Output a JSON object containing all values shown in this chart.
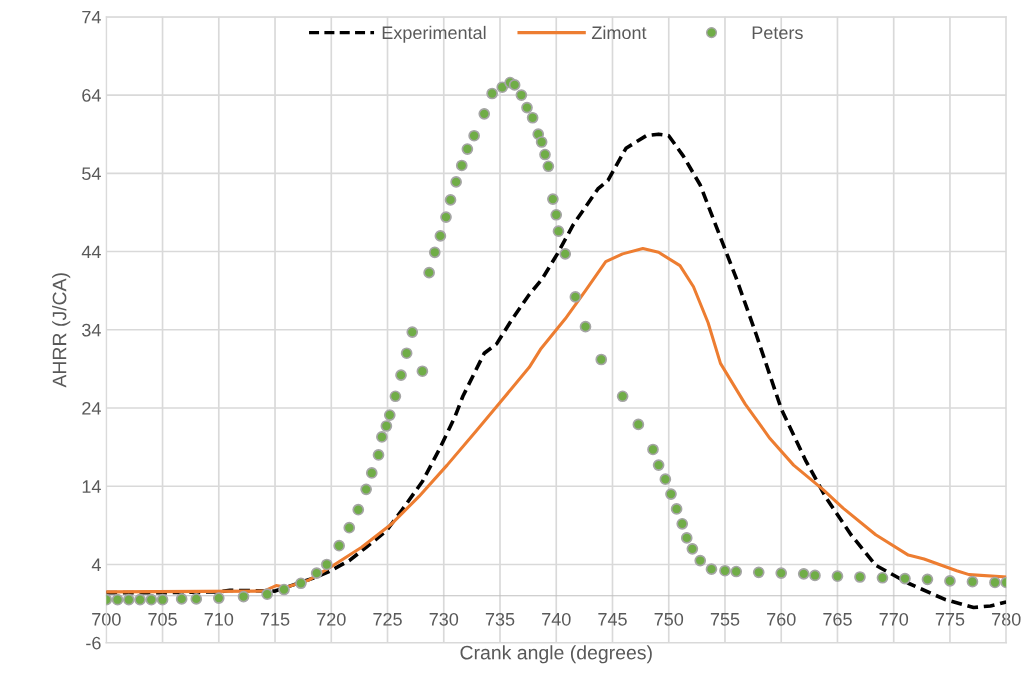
{
  "chart_data": {
    "type": "line",
    "xlabel": "Crank angle (degrees)",
    "ylabel": "AHRR (J/CA)",
    "xlim": [
      700,
      780
    ],
    "xticks": [
      700,
      705,
      710,
      715,
      720,
      725,
      730,
      735,
      740,
      745,
      750,
      755,
      760,
      765,
      770,
      775,
      780
    ],
    "ylim": [
      -6,
      74
    ],
    "yticks": [
      -6,
      4,
      14,
      24,
      34,
      44,
      54,
      64,
      74
    ],
    "grid": true,
    "legend": "top",
    "series": [
      {
        "name": "Experimental",
        "color": "#000000",
        "line_style": "dashed",
        "x": [
          700,
          705,
          710,
          711,
          715,
          718.7,
          719.8,
          721.6,
          723.1,
          724.9,
          726.3,
          728.1,
          729.6,
          731,
          731.7,
          733.6,
          734.7,
          736.1,
          737.6,
          738.7,
          740.1,
          741.5,
          743.7,
          744.6,
          746.2,
          748,
          749.1,
          750,
          751.3,
          752.8,
          754.6,
          756,
          757.8,
          760,
          762.2,
          764,
          766.2,
          768.4,
          771.3,
          774.6,
          777.1,
          778.6,
          780
        ],
        "values": [
          0.4,
          0.4,
          0.5,
          0.7,
          0.6,
          2.4,
          3.1,
          4.5,
          6.2,
          8.3,
          11,
          14.6,
          18.7,
          22.9,
          25.5,
          31,
          32.2,
          35.4,
          38.5,
          40.4,
          43.7,
          47.4,
          52,
          53.1,
          57.2,
          58.8,
          59,
          58.8,
          56.2,
          52.5,
          45.8,
          40.6,
          33.3,
          23.9,
          17.2,
          12.5,
          7.8,
          3.9,
          1.6,
          -0.5,
          -1.5,
          -1.3,
          -0.8
        ]
      },
      {
        "name": "Zimont",
        "color": "#ed7d31",
        "line_style": "solid",
        "x": [
          700,
          714,
          715.1,
          716,
          718,
          720.2,
          722.7,
          725.3,
          727.8,
          730.3,
          732.9,
          735,
          737.6,
          738.6,
          740.8,
          742.6,
          744.4,
          745.9,
          747.7,
          749.1,
          751,
          752.2,
          753.5,
          754.6,
          756.8,
          759,
          761.1,
          763.7,
          765.5,
          768.4,
          771.3,
          772.7,
          775.6,
          776.7,
          780
        ],
        "values": [
          0.5,
          0.6,
          1.3,
          1.1,
          2,
          3.9,
          6.2,
          9.1,
          12.7,
          16.7,
          21.1,
          24.7,
          29.2,
          31.5,
          35.4,
          39,
          42.7,
          43.7,
          44.4,
          43.9,
          42.2,
          39.5,
          34.9,
          29.7,
          24.5,
          20.1,
          16.7,
          13.6,
          11.2,
          7.8,
          5.2,
          4.7,
          3.2,
          2.7,
          2.4
        ]
      },
      {
        "name": "Peters",
        "type": "scatter",
        "color": "#70ad47",
        "marker": "circle",
        "x": [
          700,
          701,
          702,
          703,
          704,
          705,
          706.7,
          708,
          710,
          712.2,
          714.3,
          715.8,
          717.3,
          718.7,
          719.6,
          720.7,
          721.6,
          722.4,
          723.1,
          723.6,
          724.2,
          724.5,
          724.9,
          725.2,
          725.7,
          726.2,
          726.7,
          727.2,
          728.1,
          728.7,
          729.2,
          729.7,
          730.2,
          730.6,
          731.1,
          731.6,
          732.1,
          732.7,
          733.6,
          734.3,
          735.2,
          735.9,
          736.3,
          736.9,
          737.4,
          737.9,
          738.4,
          738.7,
          739,
          739.3,
          739.7,
          740,
          740.2,
          740.8,
          741.7,
          742.6,
          744,
          745.9,
          747.3,
          748.6,
          749.1,
          749.7,
          750.2,
          750.7,
          751.2,
          751.6,
          752.1,
          752.8,
          753.8,
          755,
          756,
          758,
          760,
          762,
          763,
          765,
          767,
          769,
          771,
          773,
          775,
          777,
          779,
          780
        ],
        "values": [
          -0.5,
          -0.5,
          -0.5,
          -0.5,
          -0.5,
          -0.5,
          -0.4,
          -0.4,
          -0.3,
          -0.1,
          0.2,
          0.8,
          1.6,
          2.9,
          4,
          6.4,
          8.7,
          11,
          13.6,
          15.7,
          18,
          20.3,
          21.7,
          23.1,
          25.5,
          28.2,
          31,
          33.7,
          28.7,
          41.3,
          43.9,
          46,
          48.4,
          50.6,
          52.9,
          55,
          57.1,
          58.8,
          61.6,
          64.2,
          65,
          65.6,
          65.3,
          64,
          62.4,
          61.1,
          59,
          58,
          56.4,
          54.9,
          50.7,
          48.7,
          46.6,
          43.7,
          38.2,
          34.4,
          30.2,
          25.5,
          21.9,
          18.7,
          16.7,
          14.9,
          13,
          11.1,
          9.2,
          7.4,
          6,
          4.5,
          3.4,
          3.2,
          3.1,
          3.0,
          2.9,
          2.8,
          2.6,
          2.5,
          2.4,
          2.3,
          2.2,
          2.1,
          1.9,
          1.8,
          1.7,
          1.7
        ]
      }
    ]
  }
}
